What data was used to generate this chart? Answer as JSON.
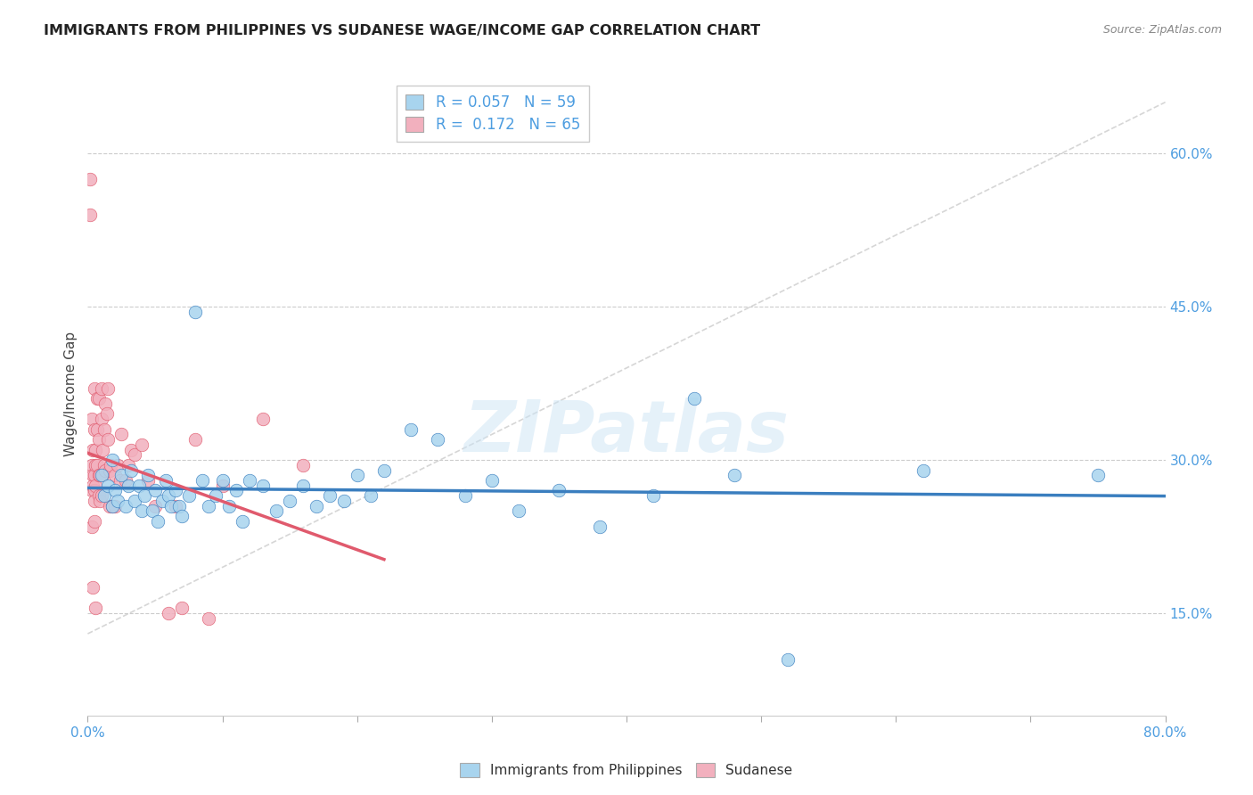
{
  "title": "IMMIGRANTS FROM PHILIPPINES VS SUDANESE WAGE/INCOME GAP CORRELATION CHART",
  "source": "Source: ZipAtlas.com",
  "ylabel": "Wage/Income Gap",
  "yticks_right": [
    0.15,
    0.3,
    0.45,
    0.6
  ],
  "ytick_labels_right": [
    "15.0%",
    "30.0%",
    "45.0%",
    "60.0%"
  ],
  "xlim": [
    0.0,
    0.8
  ],
  "ylim": [
    0.05,
    0.68
  ],
  "legend_label_blue": "Immigrants from Philippines",
  "legend_label_pink": "Sudanese",
  "R_blue": 0.057,
  "N_blue": 59,
  "R_pink": 0.172,
  "N_pink": 65,
  "color_blue": "#a8d4ee",
  "color_pink": "#f2b0be",
  "color_blue_line": "#3a7ebf",
  "color_pink_line": "#e05a6d",
  "color_text_blue": "#4d9de0",
  "watermark": "ZIPatlas",
  "blue_points_x": [
    0.01,
    0.012,
    0.015,
    0.018,
    0.018,
    0.02,
    0.022,
    0.025,
    0.028,
    0.03,
    0.032,
    0.035,
    0.038,
    0.04,
    0.042,
    0.045,
    0.048,
    0.05,
    0.052,
    0.055,
    0.058,
    0.06,
    0.062,
    0.065,
    0.068,
    0.07,
    0.075,
    0.08,
    0.085,
    0.09,
    0.095,
    0.1,
    0.105,
    0.11,
    0.115,
    0.12,
    0.13,
    0.14,
    0.15,
    0.16,
    0.17,
    0.18,
    0.19,
    0.2,
    0.21,
    0.22,
    0.24,
    0.26,
    0.28,
    0.3,
    0.32,
    0.35,
    0.38,
    0.42,
    0.45,
    0.48,
    0.52,
    0.62,
    0.75
  ],
  "blue_points_y": [
    0.285,
    0.265,
    0.275,
    0.3,
    0.255,
    0.27,
    0.26,
    0.285,
    0.255,
    0.275,
    0.29,
    0.26,
    0.275,
    0.25,
    0.265,
    0.285,
    0.25,
    0.27,
    0.24,
    0.26,
    0.28,
    0.265,
    0.255,
    0.27,
    0.255,
    0.245,
    0.265,
    0.445,
    0.28,
    0.255,
    0.265,
    0.28,
    0.255,
    0.27,
    0.24,
    0.28,
    0.275,
    0.25,
    0.26,
    0.275,
    0.255,
    0.265,
    0.26,
    0.285,
    0.265,
    0.29,
    0.33,
    0.32,
    0.265,
    0.28,
    0.25,
    0.27,
    0.235,
    0.265,
    0.36,
    0.285,
    0.105,
    0.29,
    0.285
  ],
  "pink_points_x": [
    0.002,
    0.002,
    0.003,
    0.003,
    0.003,
    0.003,
    0.004,
    0.004,
    0.004,
    0.004,
    0.005,
    0.005,
    0.005,
    0.005,
    0.005,
    0.005,
    0.006,
    0.006,
    0.006,
    0.006,
    0.007,
    0.007,
    0.007,
    0.008,
    0.008,
    0.008,
    0.008,
    0.009,
    0.009,
    0.01,
    0.01,
    0.01,
    0.011,
    0.011,
    0.012,
    0.012,
    0.013,
    0.013,
    0.014,
    0.015,
    0.015,
    0.016,
    0.016,
    0.017,
    0.018,
    0.02,
    0.02,
    0.022,
    0.024,
    0.025,
    0.028,
    0.03,
    0.032,
    0.035,
    0.04,
    0.045,
    0.05,
    0.06,
    0.065,
    0.07,
    0.08,
    0.09,
    0.1,
    0.13,
    0.16
  ],
  "pink_points_y": [
    0.575,
    0.54,
    0.27,
    0.34,
    0.295,
    0.235,
    0.31,
    0.285,
    0.275,
    0.175,
    0.37,
    0.33,
    0.285,
    0.27,
    0.26,
    0.24,
    0.31,
    0.295,
    0.275,
    0.155,
    0.36,
    0.33,
    0.295,
    0.36,
    0.32,
    0.285,
    0.265,
    0.285,
    0.26,
    0.37,
    0.34,
    0.265,
    0.31,
    0.285,
    0.33,
    0.295,
    0.355,
    0.29,
    0.345,
    0.37,
    0.32,
    0.29,
    0.255,
    0.295,
    0.255,
    0.285,
    0.255,
    0.295,
    0.28,
    0.325,
    0.28,
    0.295,
    0.31,
    0.305,
    0.315,
    0.28,
    0.255,
    0.15,
    0.255,
    0.155,
    0.32,
    0.145,
    0.275,
    0.34,
    0.295
  ]
}
